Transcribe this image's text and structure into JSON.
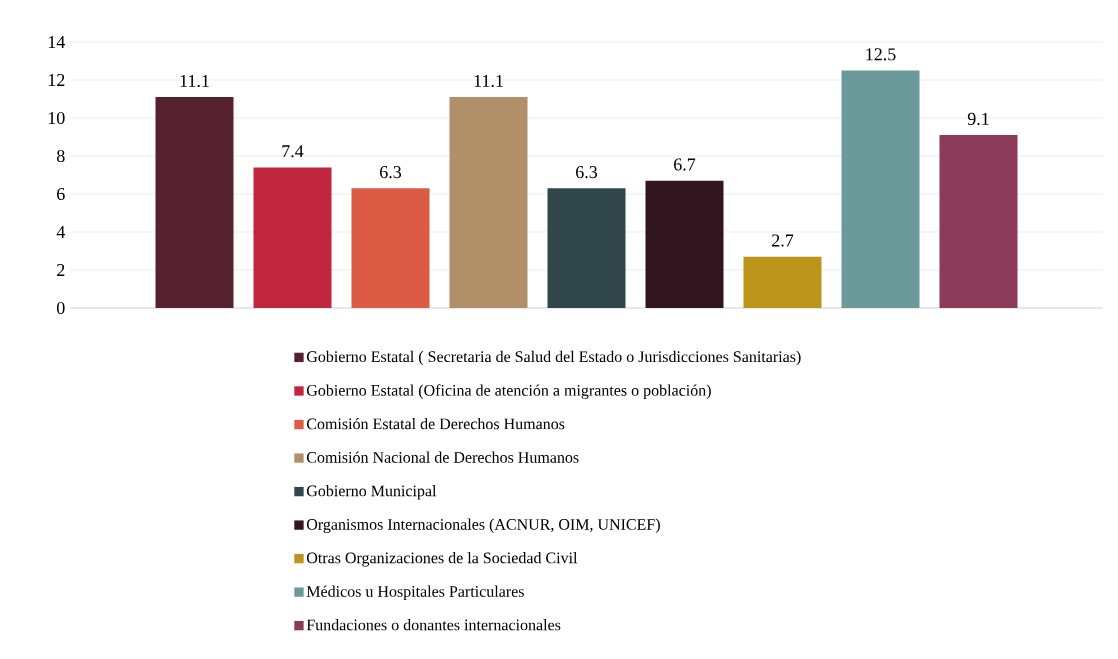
{
  "chart_data": {
    "type": "bar",
    "categories": [
      null
    ],
    "series": [
      {
        "name": "Gobierno Estatal ( Secretaria de Salud del Estado o Jurisdicciones Sanitarias)",
        "color": "#56222f",
        "values": [
          11.1
        ]
      },
      {
        "name": "Gobierno Estatal (Oficina de atención a migrantes o población)",
        "color": "#c0273f",
        "values": [
          7.4
        ]
      },
      {
        "name": "Comisión Estatal de Derechos Humanos",
        "color": "#dc5b44",
        "values": [
          6.3
        ]
      },
      {
        "name": "Comisión Nacional de Derechos Humanos",
        "color": "#b08f69",
        "values": [
          11.1
        ]
      },
      {
        "name": "Gobierno Municipal",
        "color": "#31474b",
        "values": [
          6.3
        ]
      },
      {
        "name": "Organismos Internacionales (ACNUR, OIM, UNICEF)",
        "color": "#32161f",
        "values": [
          6.7
        ]
      },
      {
        "name": "Otras Organizaciones de la Sociedad Civil",
        "color": "#bc951b",
        "values": [
          2.7
        ]
      },
      {
        "name": "Médicos u Hospitales Particulares",
        "color": "#6c9a9b",
        "values": [
          12.5
        ]
      },
      {
        "name": "Fundaciones o donantes internacionales",
        "color": "#8b3a58",
        "values": [
          9.1
        ]
      }
    ],
    "ylim": [
      0,
      14
    ],
    "yticks": [
      0,
      2,
      4,
      6,
      8,
      10,
      12,
      14
    ],
    "grid": "y",
    "legend": "bottom",
    "data_labels": true
  }
}
